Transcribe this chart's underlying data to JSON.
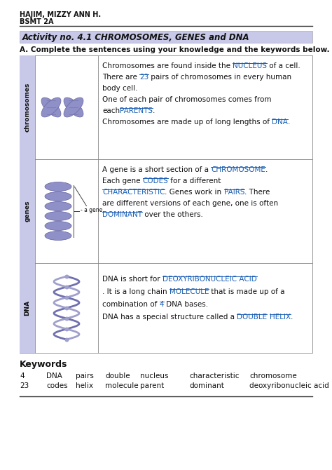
{
  "title_name": "HAJIM, MIZZY ANN H.",
  "title_section": "BSMT 2A",
  "activity_title": "Activity no. 4.1 CHROMOSOMES, GENES and DNA",
  "instruction": "A. Complete the sentences using your knowledge and the keywords below.",
  "header_bg": "#c8c8e8",
  "row_label_bg": "#c8c8e8",
  "table_border": "#888888",
  "row1_label": "chromosomes",
  "row1_text": [
    [
      "Chromosomes are found inside the ",
      "NUCLEUS",
      " of a cell."
    ],
    [
      "There are ",
      "23",
      " pairs of chromosomes in every human"
    ],
    [
      "body cell."
    ],
    [
      "One of each pair of chromosomes comes from"
    ],
    [
      "each",
      "PARENTS",
      "."
    ],
    [
      "Chromosomes are made up of long lengths of ",
      "DNA",
      "."
    ]
  ],
  "row2_text": [
    [
      "A gene is a short section of a ",
      "CHROMOSOME",
      "."
    ],
    [
      "Each gene ",
      "CODES",
      " for a different"
    ],
    [
      "CHARACTERISTIC",
      ". Genes work in ",
      "PAIRS",
      ". There"
    ],
    [
      "are different versions of each gene, one is often"
    ],
    [
      "DOMINANT",
      " over the others."
    ]
  ],
  "row3_text": [
    [
      "DNA is short for ",
      "DEOXYRIBONUCLEIC ACID"
    ],
    [
      ". It is a long chain ",
      "MOLECULE",
      " that is made up of a"
    ],
    [
      "combination of ",
      "4",
      " DNA bases."
    ],
    [
      "DNA has a special structure called a ",
      "DOUBLE",
      " ",
      "HELIX",
      "."
    ]
  ],
  "row2_label": "genes",
  "row3_label": "DNA",
  "keywords_title": "Keywords",
  "keywords_row1": [
    "4",
    "DNA",
    "pairs",
    "double",
    "nucleus",
    "characteristic",
    "chromosome"
  ],
  "keywords_row2": [
    "23",
    "codes",
    "helix",
    "molecule",
    "parent",
    "dominant",
    "deoxyribonucleic acid"
  ],
  "answer_color": "#1a5fb4",
  "text_color": "#111111",
  "bg_color": "#ffffff",
  "fig_w": 4.74,
  "fig_h": 6.7,
  "dpi": 100
}
